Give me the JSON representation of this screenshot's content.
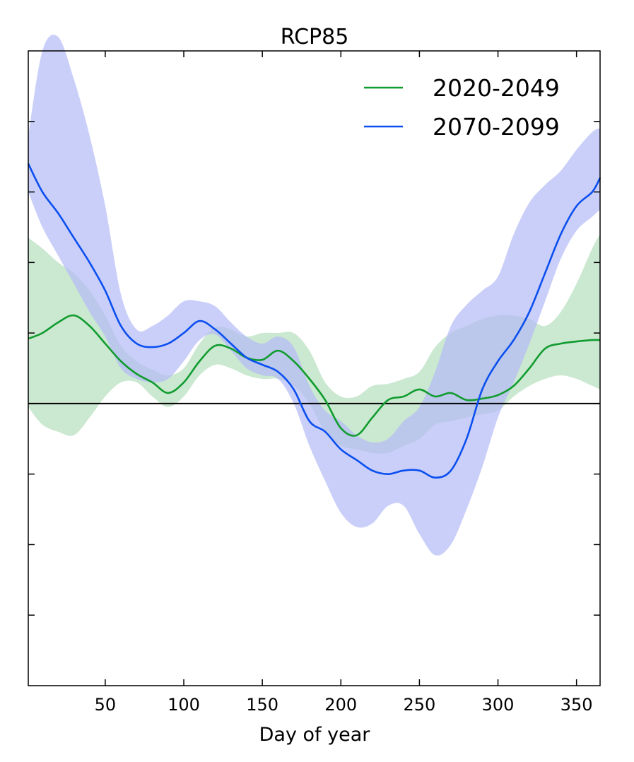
{
  "chart_data": {
    "type": "line",
    "title": "RCP85",
    "xlabel": "Day of year",
    "ylabel": "",
    "xlim": [
      1,
      365
    ],
    "ylim": [
      -4,
      5
    ],
    "x_ticks": [
      50,
      100,
      150,
      200,
      250,
      300,
      350
    ],
    "y_ticks": [
      -3,
      -2,
      -1,
      0,
      1,
      2,
      3,
      4
    ],
    "y_tick_labels_shown": false,
    "zero_line": 0,
    "grid": false,
    "legend_position": "top-right",
    "series": [
      {
        "name": "2020-2049",
        "color": "#119c2f",
        "band_color": "#b9e0c2",
        "x": [
          1,
          10,
          20,
          30,
          40,
          50,
          60,
          70,
          80,
          90,
          100,
          110,
          120,
          130,
          140,
          150,
          160,
          170,
          180,
          190,
          200,
          210,
          220,
          230,
          240,
          250,
          260,
          270,
          280,
          290,
          300,
          310,
          320,
          330,
          340,
          350,
          360,
          365
        ],
        "mean": [
          0.92,
          1.0,
          1.15,
          1.25,
          1.1,
          0.85,
          0.6,
          0.42,
          0.3,
          0.15,
          0.3,
          0.6,
          0.82,
          0.78,
          0.65,
          0.62,
          0.75,
          0.6,
          0.35,
          0.05,
          -0.35,
          -0.45,
          -0.2,
          0.05,
          0.1,
          0.2,
          0.1,
          0.15,
          0.05,
          0.07,
          0.12,
          0.25,
          0.5,
          0.78,
          0.85,
          0.88,
          0.9,
          0.9
        ],
        "upper": [
          2.35,
          2.2,
          2.0,
          1.85,
          1.6,
          1.25,
          0.82,
          0.6,
          0.48,
          0.4,
          0.5,
          0.85,
          1.08,
          1.05,
          0.95,
          1.0,
          1.0,
          1.0,
          0.75,
          0.3,
          0.1,
          0.1,
          0.25,
          0.28,
          0.35,
          0.45,
          0.8,
          1.0,
          1.1,
          1.2,
          1.25,
          1.25,
          1.2,
          1.1,
          1.3,
          1.7,
          2.2,
          2.4
        ],
        "lower": [
          -0.05,
          -0.3,
          -0.4,
          -0.45,
          -0.2,
          0.1,
          0.3,
          0.3,
          0.1,
          -0.05,
          0.1,
          0.4,
          0.55,
          0.5,
          0.4,
          0.35,
          0.35,
          0.25,
          0.0,
          -0.4,
          -0.6,
          -0.65,
          -0.7,
          -0.7,
          -0.6,
          -0.5,
          -0.3,
          -0.25,
          -0.2,
          -0.15,
          -0.1,
          0.1,
          0.25,
          0.35,
          0.4,
          0.35,
          0.25,
          0.2
        ]
      },
      {
        "name": "2070-2099",
        "color": "#0b4ff0",
        "band_color": "#b4bbf7",
        "x": [
          1,
          10,
          20,
          30,
          40,
          50,
          60,
          70,
          80,
          90,
          100,
          110,
          120,
          130,
          140,
          150,
          160,
          170,
          180,
          190,
          200,
          210,
          220,
          230,
          240,
          250,
          260,
          270,
          280,
          290,
          300,
          310,
          320,
          330,
          340,
          350,
          360,
          365
        ],
        "mean": [
          3.4,
          3.0,
          2.7,
          2.35,
          2.0,
          1.6,
          1.1,
          0.85,
          0.8,
          0.85,
          1.0,
          1.17,
          1.05,
          0.85,
          0.65,
          0.55,
          0.45,
          0.2,
          -0.25,
          -0.4,
          -0.65,
          -0.8,
          -0.95,
          -1.0,
          -0.95,
          -0.95,
          -1.05,
          -0.95,
          -0.5,
          0.2,
          0.6,
          0.9,
          1.3,
          1.85,
          2.4,
          2.8,
          3.0,
          3.2
        ],
        "upper": [
          3.8,
          5.0,
          5.2,
          4.6,
          3.8,
          2.8,
          1.55,
          1.05,
          1.1,
          1.25,
          1.45,
          1.45,
          1.38,
          1.15,
          0.95,
          0.85,
          0.95,
          0.8,
          0.25,
          -0.1,
          -0.25,
          -0.45,
          -0.55,
          -0.5,
          -0.25,
          -0.05,
          0.45,
          1.1,
          1.4,
          1.6,
          1.8,
          2.4,
          2.85,
          3.1,
          3.3,
          3.6,
          3.85,
          3.9
        ],
        "lower": [
          3.0,
          2.5,
          2.1,
          1.7,
          1.3,
          0.95,
          0.5,
          0.35,
          0.3,
          0.35,
          0.6,
          0.9,
          0.98,
          0.75,
          0.5,
          0.4,
          0.35,
          0.0,
          -0.6,
          -1.1,
          -1.55,
          -1.75,
          -1.7,
          -1.45,
          -1.45,
          -1.85,
          -2.15,
          -2.0,
          -1.5,
          -0.9,
          -0.2,
          0.3,
          0.85,
          1.45,
          2.05,
          2.45,
          2.65,
          2.75
        ]
      }
    ]
  }
}
